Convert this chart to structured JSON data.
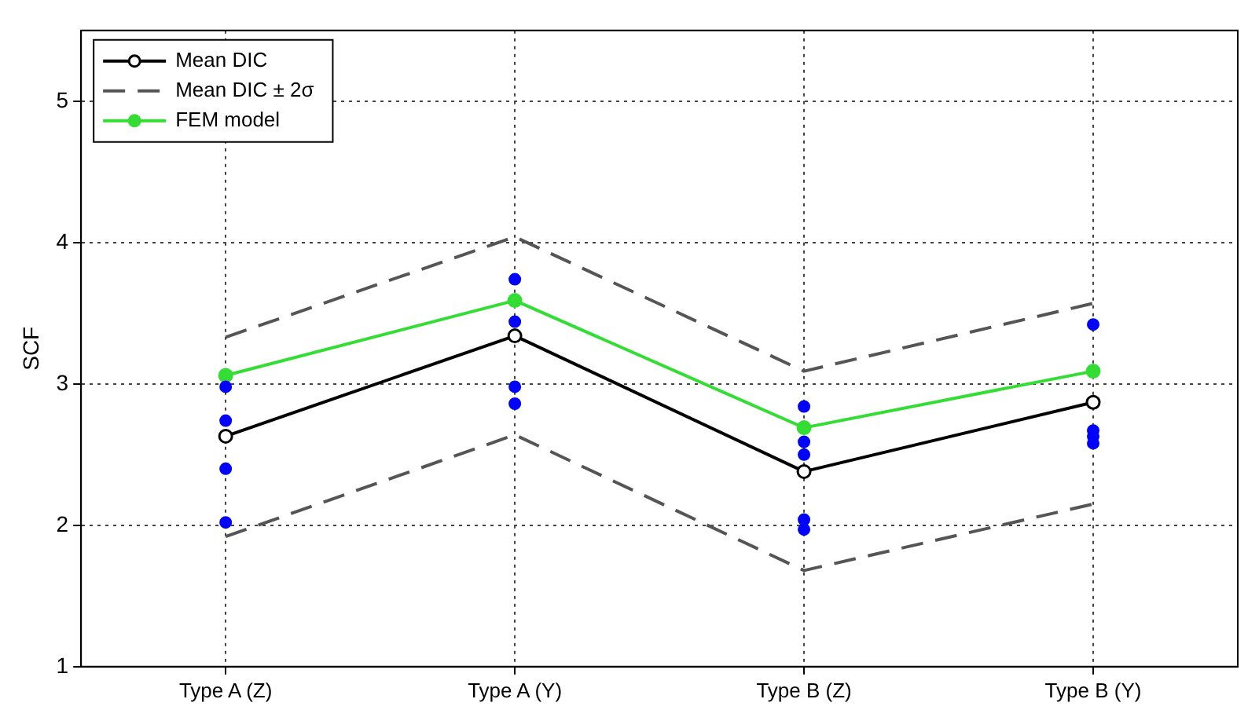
{
  "chart_data": {
    "type": "line",
    "ylabel": "SCF",
    "categories": [
      "Type A (Z)",
      "Type A (Y)",
      "Type B (Z)",
      "Type B (Y)"
    ],
    "ylim": [
      1,
      5.5
    ],
    "yticks": [
      1,
      2,
      3,
      4,
      5
    ],
    "grid": true,
    "legend": "top left",
    "series": [
      {
        "name": "Mean DIC",
        "type": "line",
        "color": "#000000",
        "marker": "circle",
        "line_style": "solid",
        "values": [
          2.63,
          3.34,
          2.38,
          2.87
        ]
      },
      {
        "name": "Mean DIC ± 2σ",
        "type": "line",
        "color": "#555555",
        "marker": "none",
        "line_style": "dashed",
        "values": [
          3.33,
          4.04,
          3.09,
          3.57
        ]
      },
      {
        "type": "line",
        "color": "#555555",
        "marker": "none",
        "line_style": "dashed",
        "values": [
          1.92,
          2.64,
          1.68,
          2.15
        ]
      },
      {
        "name": "FEM model",
        "type": "line",
        "color": "#33dd33",
        "marker": "circle",
        "line_style": "solid",
        "values": [
          3.06,
          3.59,
          2.69,
          3.09
        ]
      },
      {
        "type": "scatter",
        "color": "#0000ff",
        "marker": "circle",
        "x": [
          "Type A (Z)",
          "Type A (Z)",
          "Type A (Z)",
          "Type A (Z)",
          "Type A (Y)",
          "Type A (Y)",
          "Type A (Y)",
          "Type A (Y)",
          "Type B (Z)",
          "Type B (Z)",
          "Type B (Z)",
          "Type B (Z)",
          "Type B (Z)",
          "Type B (Y)",
          "Type B (Y)",
          "Type B (Y)",
          "Type B (Y)"
        ],
        "values": [
          2.98,
          2.74,
          2.4,
          2.02,
          3.74,
          3.44,
          2.98,
          2.86,
          2.84,
          2.59,
          2.5,
          2.04,
          1.97,
          3.42,
          2.67,
          2.63,
          2.58
        ]
      }
    ]
  }
}
